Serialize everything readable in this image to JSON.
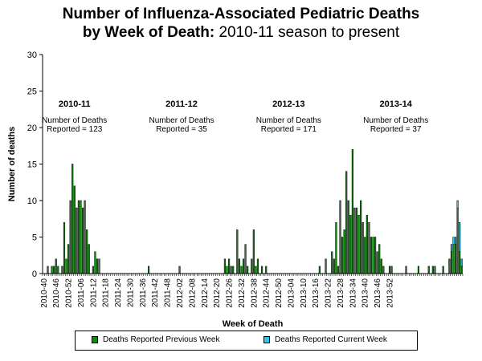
{
  "colors": {
    "previous": "#0e8a0e",
    "current": "#2ec8e8",
    "axis": "#000000"
  },
  "title": {
    "line1": "Number of Influenza-Associated Pediatric Deaths",
    "line2_bold": "by Week of Death:",
    "line2_normal": "2010-11 season to present"
  },
  "chart_data": {
    "type": "bar",
    "stacked": true,
    "title": "Number of Influenza-Associated Pediatric Deaths by Week of Death: 2010-11 season to present",
    "xlabel": "Week of Death",
    "ylabel": "Number of deaths",
    "ylim": [
      0,
      30
    ],
    "yticks": [
      0,
      5,
      10,
      15,
      20,
      25,
      30
    ],
    "grid": false,
    "legend_position": "bottom",
    "tick_labels": [
      "2010-40",
      "2010-46",
      "2010-52",
      "2011-06",
      "2011-12",
      "2011-18",
      "2011-24",
      "2011-30",
      "2011-36",
      "2011-42",
      "2011-48",
      "2012-02",
      "2012-08",
      "2012-14",
      "2012-20",
      "2012-26",
      "2012-32",
      "2012-38",
      "2012-44",
      "2012-50",
      "2013-04",
      "2013-10",
      "2013-16",
      "2013-22",
      "2013-28",
      "2013-34",
      "2013-40",
      "2013-46",
      "2013-52"
    ],
    "tick_step_weeks": 6,
    "series": [
      {
        "name": "Deaths Reported Previous Week",
        "values": [
          0,
          0,
          1,
          0,
          1,
          1,
          2,
          1,
          0,
          1,
          7,
          2,
          4,
          10,
          15,
          12,
          9,
          10,
          10,
          9,
          10,
          6,
          4,
          0,
          1,
          3,
          2,
          2,
          0,
          0,
          0,
          0,
          0,
          0,
          0,
          0,
          0,
          0,
          0,
          0,
          0,
          0,
          0,
          0,
          0,
          0,
          0,
          0,
          0,
          0,
          0,
          1,
          0,
          0,
          0,
          0,
          0,
          0,
          0,
          0,
          0,
          0,
          0,
          0,
          0,
          0,
          1,
          0,
          0,
          0,
          0,
          0,
          0,
          0,
          0,
          0,
          0,
          0,
          0,
          0,
          0,
          0,
          0,
          0,
          0,
          0,
          0,
          0,
          2,
          1,
          2,
          1,
          1,
          0,
          6,
          2,
          1,
          2,
          4,
          1,
          0,
          2,
          6,
          1,
          2,
          0,
          1,
          0,
          1,
          0,
          0,
          0,
          0,
          0,
          0,
          0,
          0,
          0,
          0,
          0,
          0,
          0,
          0,
          0,
          0,
          0,
          0,
          0,
          0,
          0,
          0,
          0,
          0,
          0,
          1,
          0,
          0,
          2,
          0,
          0,
          3,
          2,
          7,
          1,
          10,
          5,
          6,
          14,
          10,
          8,
          17,
          9,
          9,
          8,
          10,
          7,
          5,
          8,
          7,
          5,
          5,
          5,
          3,
          4,
          2,
          1,
          0,
          0,
          1,
          1,
          0,
          0,
          0,
          0,
          0,
          0,
          1,
          0,
          0,
          0,
          0,
          0,
          1,
          0,
          0,
          0,
          0,
          1,
          0,
          1,
          1,
          0,
          0,
          0,
          1,
          0,
          0,
          2,
          3,
          4,
          4,
          9,
          3,
          1
        ],
        "color": "#0e8a0e"
      },
      {
        "name": "Deaths Reported Current Week",
        "values": [
          0,
          0,
          0,
          0,
          0,
          0,
          0,
          0,
          0,
          0,
          0,
          0,
          0,
          0,
          0,
          0,
          0,
          0,
          0,
          0,
          0,
          0,
          0,
          0,
          0,
          0,
          0,
          0,
          0,
          0,
          0,
          0,
          0,
          0,
          0,
          0,
          0,
          0,
          0,
          0,
          0,
          0,
          0,
          0,
          0,
          0,
          0,
          0,
          0,
          0,
          0,
          0,
          0,
          0,
          0,
          0,
          0,
          0,
          0,
          0,
          0,
          0,
          0,
          0,
          0,
          0,
          0,
          0,
          0,
          0,
          0,
          0,
          0,
          0,
          0,
          0,
          0,
          0,
          0,
          0,
          0,
          0,
          0,
          0,
          0,
          0,
          0,
          0,
          0,
          0,
          0,
          0,
          0,
          0,
          0,
          0,
          0,
          0,
          0,
          0,
          0,
          0,
          0,
          0,
          0,
          0,
          0,
          0,
          0,
          0,
          0,
          0,
          0,
          0,
          0,
          0,
          0,
          0,
          0,
          0,
          0,
          0,
          0,
          0,
          0,
          0,
          0,
          0,
          0,
          0,
          0,
          0,
          0,
          0,
          0,
          0,
          0,
          0,
          0,
          0,
          0,
          0,
          0,
          0,
          0,
          0,
          0,
          0,
          0,
          0,
          0,
          0,
          0,
          0,
          0,
          0,
          0,
          0,
          0,
          0,
          0,
          0,
          0,
          0,
          0,
          0,
          0,
          0,
          0,
          0,
          0,
          0,
          0,
          0,
          0,
          0,
          0,
          0,
          0,
          0,
          0,
          0,
          0,
          0,
          0,
          0,
          0,
          0,
          0,
          0,
          0,
          0,
          0,
          0,
          0,
          0,
          0,
          0,
          1,
          1,
          1,
          1,
          4,
          1
        ],
        "color": "#2ec8e8"
      }
    ],
    "annotations": [
      {
        "season": "2010-11",
        "line1": "Number of Deaths",
        "line2": "Reported = 123",
        "week_index": 15
      },
      {
        "season": "2011-12",
        "line1": "Number of Deaths",
        "line2": "Reported = 35",
        "week_index": 67
      },
      {
        "season": "2012-13",
        "line1": "Number of Deaths",
        "line2": "Reported = 171",
        "week_index": 119
      },
      {
        "season": "2013-14",
        "line1": "Number of Deaths",
        "line2": "Reported = 37",
        "week_index": 171
      }
    ]
  },
  "legend": {
    "previous_label": "Deaths Reported Previous Week",
    "current_label": "Deaths Reported Current Week"
  }
}
